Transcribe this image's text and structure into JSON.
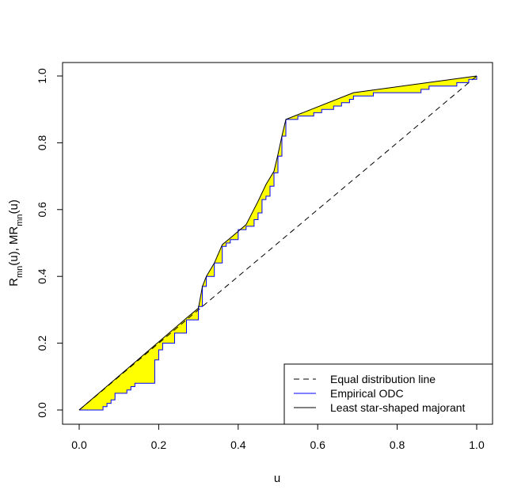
{
  "chart_data": {
    "type": "line",
    "xlabel": "u",
    "ylabel": "R_mn(u), MR_mn(u)",
    "ylabel_parts": [
      {
        "text": "R",
        "sub": false
      },
      {
        "text": "mn",
        "sub": true
      },
      {
        "text": "(u), MR",
        "sub": false
      },
      {
        "text": "mn",
        "sub": true
      },
      {
        "text": "(u)",
        "sub": false
      }
    ],
    "xlim": [
      0,
      1
    ],
    "ylim": [
      0,
      1
    ],
    "xticks": [
      0.0,
      0.2,
      0.4,
      0.6,
      0.8,
      1.0
    ],
    "yticks": [
      0.0,
      0.2,
      0.4,
      0.6,
      0.8,
      1.0
    ],
    "xtick_labels": [
      "0.0",
      "0.2",
      "0.4",
      "0.6",
      "0.8",
      "1.0"
    ],
    "ytick_labels": [
      "0.0",
      "0.2",
      "0.4",
      "0.6",
      "0.8",
      "1.0"
    ],
    "grid": false,
    "legend_position": "bottom-right",
    "legend": [
      {
        "label": "Equal distribution line",
        "style": "dashed",
        "color": "#000000"
      },
      {
        "label": "Empirical ODC",
        "style": "solid",
        "color": "#0000ff"
      },
      {
        "label": "Least star-shaped majorant",
        "style": "solid",
        "color": "#000000"
      }
    ],
    "fill_color": "#ffff00",
    "series": [
      {
        "name": "Equal distribution line",
        "x": [
          0,
          1
        ],
        "y": [
          0,
          1
        ]
      },
      {
        "name": "Empirical ODC",
        "x": [
          0.0,
          0.06,
          0.07,
          0.08,
          0.09,
          0.1,
          0.12,
          0.13,
          0.14,
          0.18,
          0.19,
          0.2,
          0.21,
          0.24,
          0.27,
          0.3,
          0.31,
          0.32,
          0.34,
          0.36,
          0.37,
          0.38,
          0.4,
          0.42,
          0.44,
          0.45,
          0.46,
          0.47,
          0.48,
          0.49,
          0.5,
          0.51,
          0.52,
          0.53,
          0.55,
          0.57,
          0.59,
          0.61,
          0.64,
          0.66,
          0.68,
          0.69,
          0.7,
          0.74,
          0.79,
          0.84,
          0.86,
          0.88,
          0.91,
          0.95,
          0.98,
          1.0
        ],
        "y": [
          0.0,
          0.01,
          0.02,
          0.03,
          0.05,
          0.05,
          0.06,
          0.07,
          0.08,
          0.08,
          0.15,
          0.18,
          0.2,
          0.23,
          0.27,
          0.31,
          0.37,
          0.4,
          0.44,
          0.49,
          0.5,
          0.51,
          0.54,
          0.55,
          0.57,
          0.59,
          0.63,
          0.64,
          0.67,
          0.71,
          0.76,
          0.82,
          0.87,
          0.87,
          0.88,
          0.88,
          0.89,
          0.9,
          0.91,
          0.92,
          0.93,
          0.94,
          0.94,
          0.95,
          0.95,
          0.95,
          0.96,
          0.97,
          0.97,
          0.98,
          0.99,
          1.0
        ]
      },
      {
        "name": "Least star-shaped majorant",
        "x": [
          0.0,
          0.27,
          0.3,
          0.31,
          0.32,
          0.34,
          0.36,
          0.38,
          0.42,
          0.45,
          0.47,
          0.49,
          0.5,
          0.51,
          0.52,
          0.69,
          1.0
        ],
        "y": [
          0.0,
          0.275,
          0.305,
          0.37,
          0.4,
          0.44,
          0.495,
          0.515,
          0.555,
          0.625,
          0.675,
          0.715,
          0.765,
          0.82,
          0.87,
          0.95,
          1.0
        ]
      }
    ]
  }
}
